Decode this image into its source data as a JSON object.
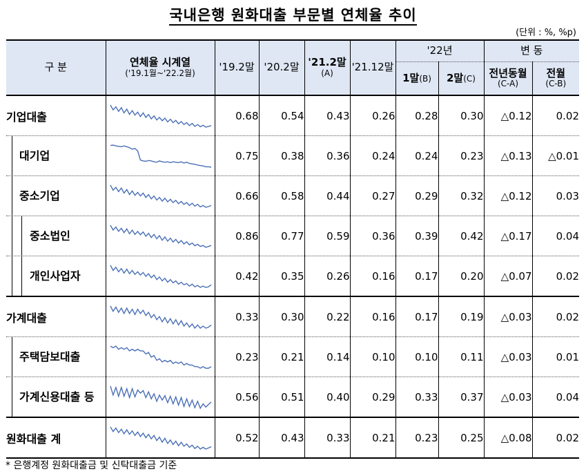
{
  "title": "국내은행 원화대출 부문별 연체율 추이",
  "unit": "(단위 : %, %p)",
  "header": {
    "category": "구 분",
    "series_label": "연체율 시계열",
    "series_range": "('19.1월~'22.2월)",
    "col_19_2": "'19.2말",
    "col_20_2": "'20.2말",
    "col_21_2": "'21.2말",
    "col_21_2_sub": "(A)",
    "col_21_12": "'21.12말",
    "group_22": "'22년",
    "col_22_1": "1말",
    "col_22_1_sub": "(B)",
    "col_22_2": "2말",
    "col_22_2_sub": "(C)",
    "group_change": "변 동",
    "col_yoy": "전년동월",
    "col_yoy_sub": "(C-A)",
    "col_mom": "전월",
    "col_mom_sub": "(C-B)"
  },
  "rows": [
    {
      "label": "기업대출",
      "v1": "0.68",
      "v2": "0.54",
      "v3": "0.43",
      "v4": "0.26",
      "v5": "0.28",
      "v6": "0.30",
      "yoy": "△0.12",
      "mom": "0.02",
      "trend": [
        0.85,
        0.72,
        0.8,
        0.68,
        0.78,
        0.64,
        0.74,
        0.6,
        0.7,
        0.58,
        0.66,
        0.54,
        0.64,
        0.52,
        0.6,
        0.48,
        0.56,
        0.45,
        0.52,
        0.43,
        0.5,
        0.4,
        0.47,
        0.38,
        0.44,
        0.35,
        0.41,
        0.33,
        0.38,
        0.3,
        0.36,
        0.28,
        0.33,
        0.27,
        0.31,
        0.26,
        0.28,
        0.3
      ]
    },
    {
      "label": "대기업",
      "v1": "0.75",
      "v2": "0.38",
      "v3": "0.36",
      "v4": "0.24",
      "v5": "0.24",
      "v6": "0.23",
      "yoy": "△0.13",
      "mom": "△0.01",
      "trend": [
        0.75,
        0.76,
        0.74,
        0.73,
        0.72,
        0.74,
        0.72,
        0.7,
        0.66,
        0.68,
        0.62,
        0.4,
        0.38,
        0.37,
        0.39,
        0.38,
        0.36,
        0.35,
        0.38,
        0.36,
        0.35,
        0.36,
        0.34,
        0.36,
        0.35,
        0.34,
        0.36,
        0.33,
        0.35,
        0.32,
        0.31,
        0.3,
        0.28,
        0.27,
        0.26,
        0.24,
        0.24,
        0.23
      ]
    },
    {
      "label": "중소기업",
      "v1": "0.66",
      "v2": "0.58",
      "v3": "0.44",
      "v4": "0.27",
      "v5": "0.29",
      "v6": "0.32",
      "yoy": "△0.12",
      "mom": "0.03",
      "trend": [
        0.88,
        0.74,
        0.82,
        0.7,
        0.8,
        0.66,
        0.76,
        0.62,
        0.72,
        0.6,
        0.68,
        0.58,
        0.66,
        0.54,
        0.62,
        0.5,
        0.58,
        0.47,
        0.54,
        0.44,
        0.52,
        0.42,
        0.49,
        0.4,
        0.46,
        0.37,
        0.43,
        0.35,
        0.4,
        0.32,
        0.38,
        0.3,
        0.35,
        0.28,
        0.32,
        0.27,
        0.29,
        0.32
      ]
    },
    {
      "label": "중소법인",
      "v1": "0.86",
      "v2": "0.77",
      "v3": "0.59",
      "v4": "0.36",
      "v5": "0.39",
      "v6": "0.42",
      "yoy": "△0.17",
      "mom": "0.04",
      "trend": [
        1.08,
        0.92,
        1.02,
        0.88,
        0.98,
        0.84,
        0.96,
        0.8,
        0.92,
        0.78,
        0.88,
        0.77,
        0.86,
        0.72,
        0.82,
        0.68,
        0.78,
        0.64,
        0.74,
        0.59,
        0.7,
        0.56,
        0.66,
        0.53,
        0.62,
        0.5,
        0.58,
        0.47,
        0.54,
        0.44,
        0.5,
        0.41,
        0.46,
        0.39,
        0.42,
        0.36,
        0.39,
        0.42
      ]
    },
    {
      "label": "개인사업자",
      "v1": "0.42",
      "v2": "0.35",
      "v3": "0.26",
      "v4": "0.16",
      "v5": "0.17",
      "v6": "0.20",
      "yoy": "△0.07",
      "mom": "0.02",
      "trend": [
        0.5,
        0.42,
        0.47,
        0.4,
        0.45,
        0.38,
        0.44,
        0.37,
        0.42,
        0.36,
        0.4,
        0.35,
        0.39,
        0.33,
        0.37,
        0.31,
        0.35,
        0.28,
        0.32,
        0.26,
        0.3,
        0.24,
        0.28,
        0.23,
        0.26,
        0.21,
        0.24,
        0.2,
        0.22,
        0.18,
        0.21,
        0.17,
        0.19,
        0.16,
        0.18,
        0.16,
        0.17,
        0.2
      ]
    },
    {
      "label": "가계대출",
      "v1": "0.33",
      "v2": "0.30",
      "v3": "0.22",
      "v4": "0.16",
      "v5": "0.17",
      "v6": "0.19",
      "yoy": "△0.03",
      "mom": "0.02",
      "trend": [
        0.37,
        0.32,
        0.36,
        0.31,
        0.35,
        0.3,
        0.35,
        0.3,
        0.34,
        0.29,
        0.34,
        0.3,
        0.33,
        0.28,
        0.31,
        0.26,
        0.29,
        0.24,
        0.27,
        0.22,
        0.26,
        0.21,
        0.25,
        0.2,
        0.24,
        0.19,
        0.23,
        0.18,
        0.21,
        0.17,
        0.2,
        0.16,
        0.19,
        0.16,
        0.18,
        0.16,
        0.17,
        0.19
      ]
    },
    {
      "label": "주택담보대출",
      "v1": "0.23",
      "v2": "0.21",
      "v3": "0.14",
      "v4": "0.10",
      "v5": "0.10",
      "v6": "0.11",
      "yoy": "△0.03",
      "mom": "0.01",
      "trend": [
        0.24,
        0.23,
        0.24,
        0.22,
        0.23,
        0.22,
        0.23,
        0.21,
        0.22,
        0.21,
        0.22,
        0.21,
        0.21,
        0.19,
        0.2,
        0.17,
        0.18,
        0.15,
        0.16,
        0.14,
        0.15,
        0.14,
        0.15,
        0.13,
        0.14,
        0.13,
        0.14,
        0.12,
        0.13,
        0.12,
        0.12,
        0.11,
        0.11,
        0.1,
        0.11,
        0.1,
        0.1,
        0.11
      ]
    },
    {
      "label": "가계신용대출 등",
      "v1": "0.56",
      "v2": "0.51",
      "v3": "0.40",
      "v4": "0.29",
      "v5": "0.33",
      "v6": "0.37",
      "yoy": "△0.03",
      "mom": "0.04",
      "trend": [
        0.62,
        0.48,
        0.6,
        0.46,
        0.6,
        0.46,
        0.58,
        0.44,
        0.58,
        0.45,
        0.56,
        0.51,
        0.55,
        0.44,
        0.53,
        0.42,
        0.5,
        0.38,
        0.48,
        0.4,
        0.47,
        0.36,
        0.46,
        0.34,
        0.45,
        0.32,
        0.44,
        0.3,
        0.42,
        0.3,
        0.4,
        0.28,
        0.38,
        0.27,
        0.34,
        0.29,
        0.33,
        0.37
      ]
    },
    {
      "label": "원화대출 계",
      "v1": "0.52",
      "v2": "0.43",
      "v3": "0.33",
      "v4": "0.21",
      "v5": "0.23",
      "v6": "0.25",
      "yoy": "△0.08",
      "mom": "0.02",
      "trend": [
        0.6,
        0.52,
        0.58,
        0.5,
        0.56,
        0.48,
        0.55,
        0.47,
        0.53,
        0.45,
        0.51,
        0.43,
        0.49,
        0.41,
        0.47,
        0.39,
        0.45,
        0.36,
        0.42,
        0.33,
        0.4,
        0.31,
        0.37,
        0.29,
        0.35,
        0.27,
        0.33,
        0.26,
        0.3,
        0.24,
        0.28,
        0.22,
        0.26,
        0.21,
        0.24,
        0.21,
        0.23,
        0.25
      ]
    }
  ],
  "footnote": "* 은행계정 원화대출금 및 신탁대출금 기준"
}
